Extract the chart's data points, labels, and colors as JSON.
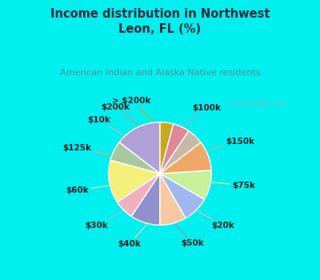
{
  "title": "Income distribution in Northwest\nLeon, FL (%)",
  "subtitle": "American Indian and Alaska Native residents",
  "background_cyan": "#00EFEF",
  "background_chart": "#e8f8ee",
  "title_color": "#2a2a3a",
  "subtitle_color": "#5a9090",
  "watermark": " City-Data.com",
  "labels": [
    "$100k",
    "$150k",
    "$75k",
    "$20k",
    "$50k",
    "$40k",
    "$30k",
    "$60k",
    "$125k",
    "$10k",
    "$200k",
    "> $200k"
  ],
  "values": [
    14,
    6,
    13,
    6,
    9,
    8,
    8,
    9,
    9,
    5,
    5,
    4
  ],
  "colors": [
    "#b0a0d8",
    "#a8c8a0",
    "#f5f07a",
    "#f0b0c0",
    "#9090cc",
    "#f8c8a0",
    "#a0b8f0",
    "#c8f098",
    "#f0a868",
    "#c8b8a8",
    "#e08898",
    "#c8a820"
  ],
  "label_color": "#222222",
  "label_fontsize": 7.5,
  "figsize": [
    4.0,
    3.5
  ],
  "dpi": 100
}
